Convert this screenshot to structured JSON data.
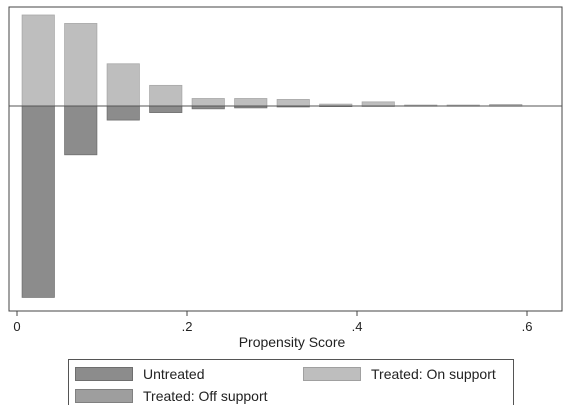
{
  "chart_data": {
    "type": "bar",
    "layout": "mirrored-histogram",
    "xlabel": "Propensity Score",
    "xlim": [
      0,
      0.63
    ],
    "xticks": [
      {
        "value": 0,
        "label": "0"
      },
      {
        "value": 0.2,
        "label": ".2"
      },
      {
        "value": 0.4,
        "label": ".4"
      },
      {
        "value": 0.6,
        "label": ".6"
      }
    ],
    "bin_width": 0.05,
    "bin_starts": [
      0.0,
      0.05,
      0.1,
      0.15,
      0.2,
      0.25,
      0.3,
      0.35,
      0.4,
      0.45,
      0.5,
      0.55
    ],
    "ylim": [
      -10.3,
      4.9
    ],
    "series": [
      {
        "name": "Untreated",
        "side": "below",
        "color": "#8c8c8c",
        "values": [
          -10.2,
          -2.6,
          -0.75,
          -0.35,
          -0.15,
          -0.1,
          -0.05,
          -0.03,
          -0.02,
          -0.01,
          -0.01,
          -0.01
        ]
      },
      {
        "name": "Treated: On support",
        "side": "above",
        "color": "#bebebe",
        "values": [
          4.85,
          4.4,
          2.25,
          1.1,
          0.4,
          0.4,
          0.35,
          0.1,
          0.22,
          0.05,
          0.05,
          0.08
        ]
      },
      {
        "name": "Treated: Off support",
        "side": "above",
        "color": "#9e9e9e",
        "values": [
          0,
          0,
          0,
          0,
          0,
          0,
          0,
          0,
          0,
          0,
          0,
          0
        ]
      }
    ],
    "legend_position": "bottom"
  }
}
